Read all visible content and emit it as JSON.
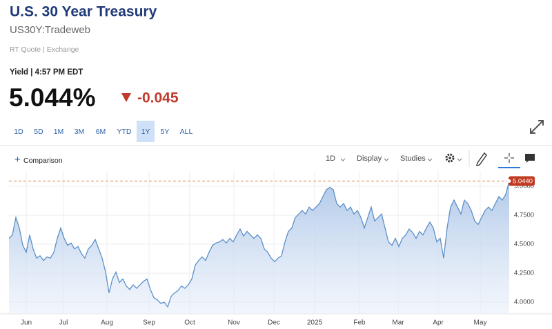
{
  "header": {
    "title": "U.S. 30 Year Treasury",
    "symbol": "US30Y:Tradeweb",
    "quote_source": "RT Quote | Exchange"
  },
  "quote": {
    "label": "Yield | 4:57 PM EDT",
    "price": "5.044%",
    "change": "-0.045"
  },
  "ranges": {
    "items": [
      "1D",
      "5D",
      "1M",
      "3M",
      "6M",
      "YTD",
      "1Y",
      "5Y",
      "ALL"
    ],
    "selected_index": 6
  },
  "toolbar": {
    "comparison": "Comparison",
    "interval": "1D",
    "display": "Display",
    "studies": "Studies"
  },
  "chart_data": {
    "type": "line",
    "color": "#5b8fc9",
    "values": [
      4.55,
      4.58,
      4.73,
      4.64,
      4.49,
      4.43,
      4.58,
      4.46,
      4.38,
      4.4,
      4.36,
      4.39,
      4.38,
      4.43,
      4.55,
      4.64,
      4.55,
      4.49,
      4.51,
      4.46,
      4.48,
      4.42,
      4.38,
      4.46,
      4.49,
      4.54,
      4.46,
      4.38,
      4.26,
      4.08,
      4.2,
      4.26,
      4.17,
      4.2,
      4.14,
      4.11,
      4.15,
      4.12,
      4.15,
      4.18,
      4.2,
      4.11,
      4.04,
      4.02,
      3.99,
      4.0,
      3.96,
      4.05,
      4.08,
      4.1,
      4.14,
      4.12,
      4.15,
      4.2,
      4.32,
      4.36,
      4.39,
      4.36,
      4.43,
      4.49,
      4.51,
      4.52,
      4.54,
      4.51,
      4.55,
      4.52,
      4.58,
      4.63,
      4.57,
      4.61,
      4.58,
      4.55,
      4.58,
      4.55,
      4.46,
      4.43,
      4.38,
      4.35,
      4.38,
      4.4,
      4.52,
      4.61,
      4.64,
      4.73,
      4.76,
      4.79,
      4.76,
      4.82,
      4.79,
      4.82,
      4.85,
      4.91,
      4.97,
      4.99,
      4.97,
      4.85,
      4.82,
      4.85,
      4.79,
      4.82,
      4.76,
      4.79,
      4.73,
      4.64,
      4.73,
      4.82,
      4.7,
      4.73,
      4.76,
      4.64,
      4.52,
      4.49,
      4.55,
      4.48,
      4.55,
      4.58,
      4.63,
      4.6,
      4.55,
      4.61,
      4.58,
      4.64,
      4.69,
      4.64,
      4.52,
      4.55,
      4.38,
      4.64,
      4.82,
      4.88,
      4.82,
      4.76,
      4.88,
      4.85,
      4.79,
      4.7,
      4.67,
      4.73,
      4.79,
      4.82,
      4.79,
      4.85,
      4.91,
      4.88,
      4.93,
      5.044
    ],
    "xlim": [
      0,
      145
    ],
    "xticks": [
      {
        "value": 5,
        "label": "Jun"
      },
      {
        "value": 15.8,
        "label": "Jul"
      },
      {
        "value": 28.4,
        "label": "Aug"
      },
      {
        "value": 40.6,
        "label": "Sep"
      },
      {
        "value": 52.4,
        "label": "Oct"
      },
      {
        "value": 65.2,
        "label": "Nov"
      },
      {
        "value": 76.8,
        "label": "Dec"
      },
      {
        "value": 88.6,
        "label": "2025"
      },
      {
        "value": 101.6,
        "label": "Feb"
      },
      {
        "value": 112.8,
        "label": "Mar"
      },
      {
        "value": 124.4,
        "label": "Apr"
      },
      {
        "value": 136.6,
        "label": "May"
      }
    ],
    "ylim": [
      3.9,
      5.13
    ],
    "yticks": [
      {
        "value": 4,
        "label": "4.0000"
      },
      {
        "value": 4.25,
        "label": "4.2500"
      },
      {
        "value": 4.5,
        "label": "4.5000"
      },
      {
        "value": 4.75,
        "label": "4.7500"
      },
      {
        "value": 5,
        "label": "5.0000"
      }
    ],
    "reference_line": {
      "value": 5.044,
      "label": "5.0440",
      "color": "#d9773a"
    },
    "grid": true
  }
}
